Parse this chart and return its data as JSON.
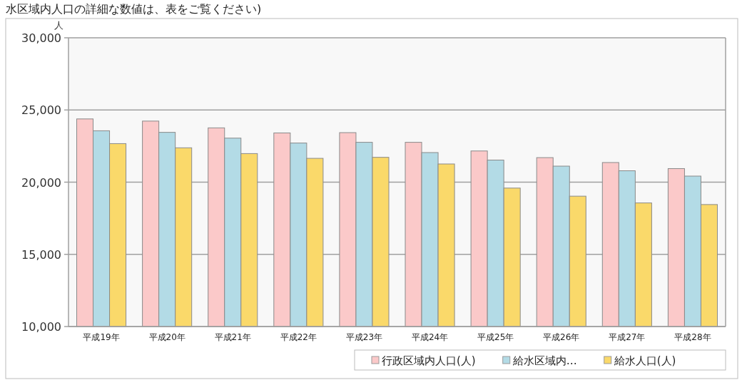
{
  "chart_data": {
    "type": "bar",
    "ylabel": "人",
    "annotations": [
      "水区域内人口の詳細な数値は、表をご覧ください)"
    ],
    "categories": [
      "平成19年",
      "平成20年",
      "平成21年",
      "平成22年",
      "平成23年",
      "平成24年",
      "平成25年",
      "平成26年",
      "平成27年",
      "平成28年"
    ],
    "series": [
      {
        "name": "行政区域内人口(人)",
        "color": "#fbc9c9",
        "values": [
          24380,
          24230,
          23760,
          23410,
          23430,
          22760,
          22160,
          21700,
          21360,
          20940
        ]
      },
      {
        "name": "給水区域内…",
        "color": "#b3dbe6",
        "values": [
          23560,
          23450,
          23050,
          22710,
          22760,
          22050,
          21530,
          21110,
          20790,
          20420
        ]
      },
      {
        "name": "給水人口(人)",
        "color": "#fad96a",
        "values": [
          22670,
          22380,
          21980,
          21650,
          21720,
          21260,
          19590,
          19030,
          18560,
          18450
        ]
      }
    ],
    "ylim": [
      10000,
      30000
    ],
    "yticks": [
      {
        "value": 10000,
        "label": "10,000"
      },
      {
        "value": 15000,
        "label": "15,000"
      },
      {
        "value": 20000,
        "label": "20,000"
      },
      {
        "value": 25000,
        "label": "25,000"
      },
      {
        "value": 30000,
        "label": "30,000"
      }
    ],
    "grid": "y",
    "legend": "bottom right"
  }
}
